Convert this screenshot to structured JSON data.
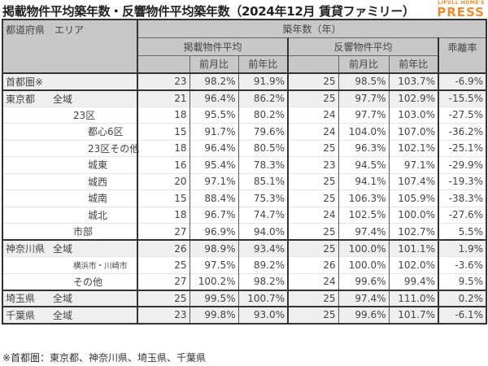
{
  "header": {
    "title": "掲載物件平均築年数・反響物件平均築年数（2024年12月 賃貸ファミリー）",
    "logo_small": "LIFULL HOME'S",
    "logo_big": "PRESS"
  },
  "table": {
    "area_header": "都道府県　エリア",
    "group_header": "築年数（年）",
    "listing_header": "掲載物件平均",
    "response_header": "反響物件平均",
    "divergence_header": "乖離率",
    "mom_label": "前月比",
    "yoy_label": "前年比",
    "rows": [
      {
        "pref": "首都圏※",
        "area": "",
        "level": 0,
        "listing": "23",
        "listing_mom": "98.2%",
        "listing_yoy": "91.9%",
        "response": "25",
        "response_mom": "98.5%",
        "response_yoy": "103.7%",
        "divergence": "-6.9%"
      },
      {
        "pref": "東京都",
        "area": "全域",
        "level": 0,
        "listing": "21",
        "listing_mom": "96.4%",
        "listing_yoy": "86.2%",
        "response": "25",
        "response_mom": "97.7%",
        "response_yoy": "102.9%",
        "divergence": "-15.5%"
      },
      {
        "pref": "",
        "area": "23区",
        "level": 1,
        "listing": "18",
        "listing_mom": "95.5%",
        "listing_yoy": "80.2%",
        "response": "24",
        "response_mom": "97.7%",
        "response_yoy": "103.0%",
        "divergence": "-27.5%"
      },
      {
        "pref": "",
        "area": "都心6区",
        "level": 2,
        "listing": "15",
        "listing_mom": "91.7%",
        "listing_yoy": "79.6%",
        "response": "24",
        "response_mom": "104.0%",
        "response_yoy": "107.0%",
        "divergence": "-36.2%"
      },
      {
        "pref": "",
        "area": "23区その他",
        "level": 2,
        "listing": "18",
        "listing_mom": "96.4%",
        "listing_yoy": "80.5%",
        "response": "25",
        "response_mom": "96.3%",
        "response_yoy": "102.1%",
        "divergence": "-25.1%"
      },
      {
        "pref": "",
        "area": "城東",
        "level": 2,
        "listing": "16",
        "listing_mom": "95.4%",
        "listing_yoy": "78.3%",
        "response": "23",
        "response_mom": "94.5%",
        "response_yoy": "97.1%",
        "divergence": "-29.9%"
      },
      {
        "pref": "",
        "area": "城西",
        "level": 2,
        "listing": "20",
        "listing_mom": "97.1%",
        "listing_yoy": "85.1%",
        "response": "25",
        "response_mom": "94.1%",
        "response_yoy": "107.4%",
        "divergence": "-19.3%"
      },
      {
        "pref": "",
        "area": "城南",
        "level": 2,
        "listing": "15",
        "listing_mom": "88.4%",
        "listing_yoy": "75.3%",
        "response": "25",
        "response_mom": "106.3%",
        "response_yoy": "105.9%",
        "divergence": "-38.3%"
      },
      {
        "pref": "",
        "area": "城北",
        "level": 2,
        "listing": "18",
        "listing_mom": "96.7%",
        "listing_yoy": "74.7%",
        "response": "24",
        "response_mom": "102.5%",
        "response_yoy": "100.0%",
        "divergence": "-27.6%"
      },
      {
        "pref": "",
        "area": "市部",
        "level": 1,
        "listing": "27",
        "listing_mom": "96.9%",
        "listing_yoy": "94.0%",
        "response": "25",
        "response_mom": "97.4%",
        "response_yoy": "102.7%",
        "divergence": "5.5%"
      },
      {
        "pref": "神奈川県",
        "area": "全域",
        "level": 0,
        "listing": "26",
        "listing_mom": "98.9%",
        "listing_yoy": "93.4%",
        "response": "25",
        "response_mom": "100.0%",
        "response_yoy": "101.1%",
        "divergence": "1.9%"
      },
      {
        "pref": "",
        "area": "横浜市・川崎市",
        "level": 3,
        "listing": "25",
        "listing_mom": "97.5%",
        "listing_yoy": "89.2%",
        "response": "26",
        "response_mom": "100.0%",
        "response_yoy": "102.0%",
        "divergence": "-3.6%"
      },
      {
        "pref": "",
        "area": "その他",
        "level": 1,
        "listing": "27",
        "listing_mom": "100.2%",
        "listing_yoy": "98.2%",
        "response": "24",
        "response_mom": "99.6%",
        "response_yoy": "99.4%",
        "divergence": "9.5%"
      },
      {
        "pref": "埼玉県",
        "area": "全域",
        "level": 0,
        "listing": "25",
        "listing_mom": "99.5%",
        "listing_yoy": "100.7%",
        "response": "25",
        "response_mom": "97.4%",
        "response_yoy": "111.0%",
        "divergence": "0.2%"
      },
      {
        "pref": "千葉県",
        "area": "全域",
        "level": 0,
        "listing": "23",
        "listing_mom": "99.8%",
        "listing_yoy": "93.0%",
        "response": "25",
        "response_mom": "99.6%",
        "response_yoy": "101.7%",
        "divergence": "-6.1%"
      }
    ]
  },
  "footnote": "※首都圏：東京都、神奈川県、埼玉県、千葉県",
  "colors": {
    "header_bg": "#c8c8c8",
    "shaded_row_bg": "#efefef",
    "logo_orange": "#f08a2a"
  }
}
